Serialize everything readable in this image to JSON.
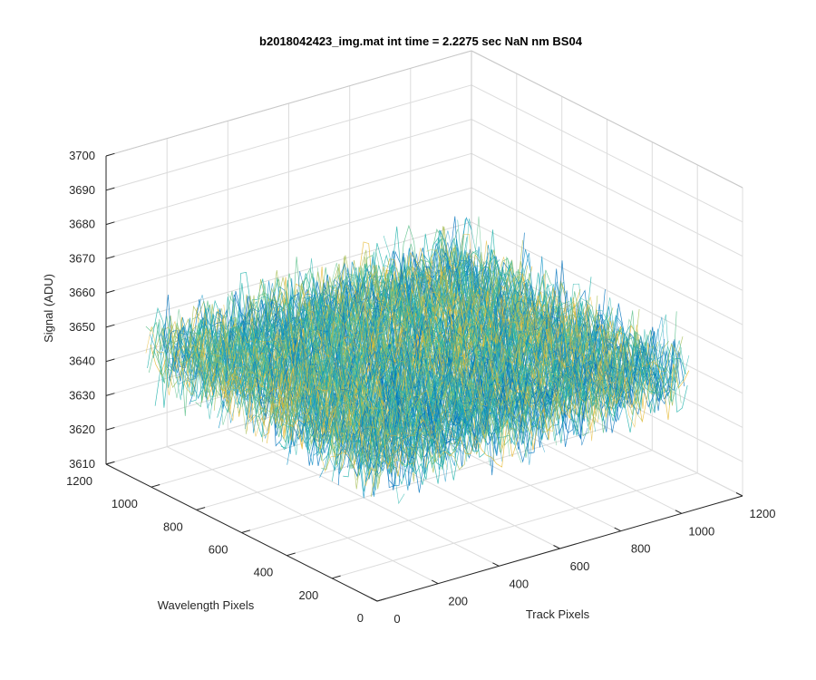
{
  "chart_data": {
    "type": "surface",
    "title": "b2018042423_img.mat int time = 2.2275 sec  NaN nm BS04",
    "xlabel": "Track Pixels",
    "ylabel": "Wavelength Pixels",
    "zlabel": "Signal (ADU)",
    "xlim": [
      0,
      1200
    ],
    "ylim": [
      0,
      1200
    ],
    "zlim": [
      3610,
      3700
    ],
    "x_ticks": [
      "0",
      "200",
      "400",
      "600",
      "800",
      "1000",
      "1200"
    ],
    "y_ticks": [
      "0",
      "200",
      "400",
      "600",
      "800",
      "1000",
      "1200"
    ],
    "z_ticks": [
      "3610",
      "3620",
      "3630",
      "3640",
      "3650",
      "3660",
      "3670",
      "3680",
      "3690",
      "3700"
    ],
    "grid": true,
    "data_extent": {
      "x": [
        0,
        1024
      ],
      "y": [
        0,
        1024
      ]
    },
    "signal_mean": 3650,
    "signal_std": 6,
    "signal_range_observed": [
      3620,
      3695
    ],
    "colormap": [
      "#0072bd",
      "#1a98c8",
      "#20b2aa",
      "#5cbf8a",
      "#a9c05a",
      "#e6b830"
    ]
  }
}
